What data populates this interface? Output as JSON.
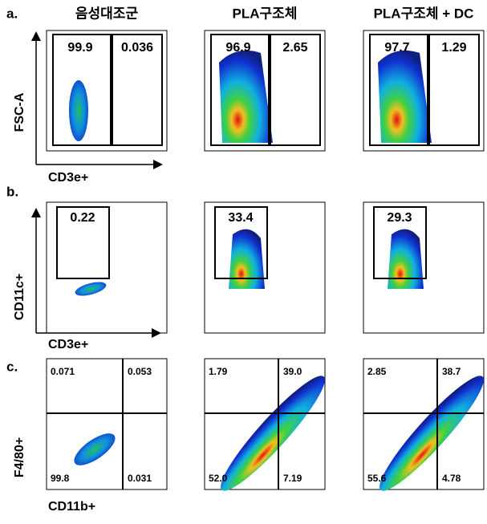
{
  "columns": [
    "음성대조군",
    "PLA구조체",
    "PLA구조체 + DC"
  ],
  "rows": [
    {
      "label": "a.",
      "y_axis": "FSC-A",
      "x_axis": "CD3e+",
      "plots": [
        [
          "99.9",
          "0.036"
        ],
        [
          "96.9",
          "2.65"
        ],
        [
          "97.7",
          "1.29"
        ]
      ]
    },
    {
      "label": "b.",
      "y_axis": "CD11c+",
      "x_axis": "CD3e+",
      "plots": [
        [
          "0.22"
        ],
        [
          "33.4"
        ],
        [
          "29.3"
        ]
      ]
    },
    {
      "label": "c.",
      "y_axis": "F4/80+",
      "x_axis": "CD11b+",
      "plots": [
        [
          "0.071",
          "0.053",
          "99.8",
          "0.031"
        ],
        [
          "1.79",
          "39.0",
          "52.0",
          "7.19"
        ],
        [
          "2.85",
          "38.7",
          "55.6",
          "4.78"
        ]
      ]
    }
  ]
}
